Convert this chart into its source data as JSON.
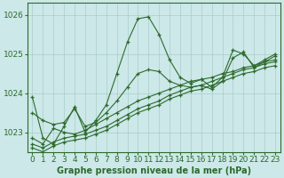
{
  "series": [
    [
      1023.9,
      1022.85,
      1022.7,
      1023.15,
      1023.65,
      1023.0,
      1023.3,
      1023.7,
      1024.5,
      1025.3,
      1025.9,
      1025.95,
      1025.5,
      1024.85,
      1024.4,
      1024.25,
      1024.35,
      1024.15,
      1024.4,
      1025.1,
      1025.0,
      1024.7,
      1024.85,
      1025.0
    ],
    [
      1022.85,
      1022.7,
      1023.1,
      1023.0,
      1022.95,
      1023.05,
      1023.2,
      1023.35,
      1023.5,
      1023.65,
      1023.8,
      1023.9,
      1024.0,
      1024.1,
      1024.2,
      1024.3,
      1024.35,
      1024.4,
      1024.5,
      1024.55,
      1024.65,
      1024.7,
      1024.8,
      1024.85
    ],
    [
      1022.7,
      1022.6,
      1022.75,
      1022.85,
      1022.9,
      1022.95,
      1023.05,
      1023.15,
      1023.3,
      1023.45,
      1023.6,
      1023.7,
      1023.8,
      1023.95,
      1024.05,
      1024.15,
      1024.2,
      1024.3,
      1024.4,
      1024.5,
      1024.6,
      1024.65,
      1024.75,
      1024.8
    ],
    [
      1022.6,
      1022.5,
      1022.65,
      1022.75,
      1022.8,
      1022.85,
      1022.95,
      1023.05,
      1023.2,
      1023.35,
      1023.5,
      1023.6,
      1023.7,
      1023.85,
      1023.95,
      1024.05,
      1024.1,
      1024.2,
      1024.3,
      1024.4,
      1024.5,
      1024.55,
      1024.65,
      1024.7
    ],
    [
      1023.5,
      1023.3,
      1023.2,
      1023.25,
      1023.6,
      1023.15,
      1023.25,
      1023.5,
      1023.8,
      1024.15,
      1024.5,
      1024.6,
      1024.55,
      1024.3,
      1024.2,
      1024.15,
      1024.2,
      1024.1,
      1024.3,
      1024.9,
      1025.05,
      1024.65,
      1024.8,
      1024.95
    ]
  ],
  "x": [
    0,
    1,
    2,
    3,
    4,
    5,
    6,
    7,
    8,
    9,
    10,
    11,
    12,
    13,
    14,
    15,
    16,
    17,
    18,
    19,
    20,
    21,
    22,
    23
  ],
  "line_color": "#2d6a2d",
  "marker_color": "#2d6a2d",
  "bg_color": "#cce8e8",
  "grid_color": "#aacccc",
  "xlabel": "Graphe pression niveau de la mer (hPa)",
  "ylim": [
    1022.5,
    1026.3
  ],
  "yticks": [
    1023,
    1024,
    1025,
    1026
  ],
  "xticks": [
    0,
    1,
    2,
    3,
    4,
    5,
    6,
    7,
    8,
    9,
    10,
    11,
    12,
    13,
    14,
    15,
    16,
    17,
    18,
    19,
    20,
    21,
    22,
    23
  ],
  "font_color": "#2d6a2d",
  "font_size": 6.5
}
